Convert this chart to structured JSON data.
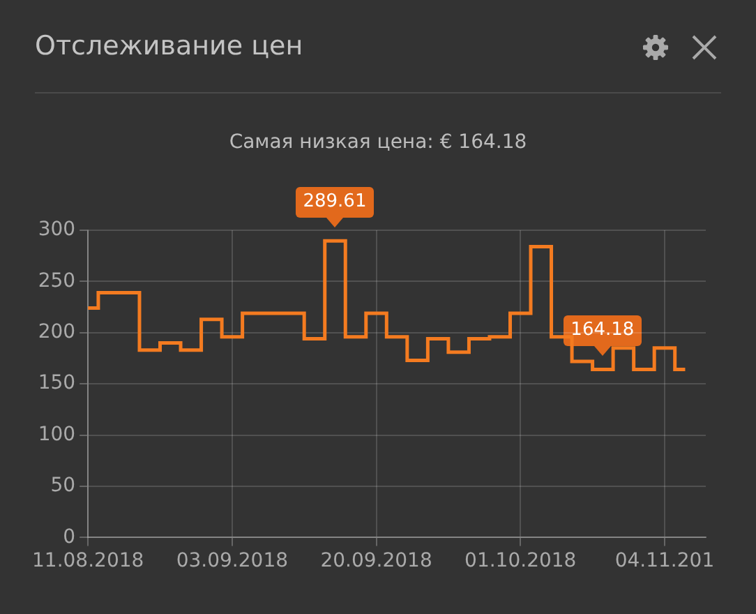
{
  "chart_data": {
    "type": "step",
    "title": "Отслеживание цен",
    "subtitle": "Самая низкая цена: € 164.18",
    "categories": [
      "11.08.2018",
      null,
      null,
      null,
      null,
      null,
      null,
      "03.09.2018",
      null,
      null,
      null,
      null,
      null,
      null,
      "20.09.2018",
      null,
      null,
      null,
      null,
      null,
      null,
      "01.10.2018",
      null,
      null,
      null,
      null,
      null,
      null,
      "04.11.201",
      null,
      null
    ],
    "series": [
      {
        "color": "#f47b20",
        "values": [
          224,
          239,
          239,
          183,
          190,
          183,
          213,
          196,
          219,
          219,
          219,
          194,
          289.61,
          196,
          219,
          196,
          173,
          194,
          181,
          194,
          196,
          219,
          284,
          196,
          172,
          164.18,
          185,
          164.18,
          185,
          164.18,
          null
        ],
        "value_labels": [
          null,
          null,
          null,
          null,
          null,
          null,
          null,
          null,
          null,
          null,
          null,
          null,
          "289.61",
          null,
          null,
          null,
          null,
          null,
          null,
          null,
          null,
          null,
          null,
          null,
          null,
          "164.18",
          null,
          null,
          null,
          null,
          null
        ]
      }
    ],
    "ylim": [
      0,
      300
    ],
    "yticks": [
      0,
      50,
      100,
      150,
      200,
      250,
      300
    ],
    "grid": true,
    "legend": false
  }
}
